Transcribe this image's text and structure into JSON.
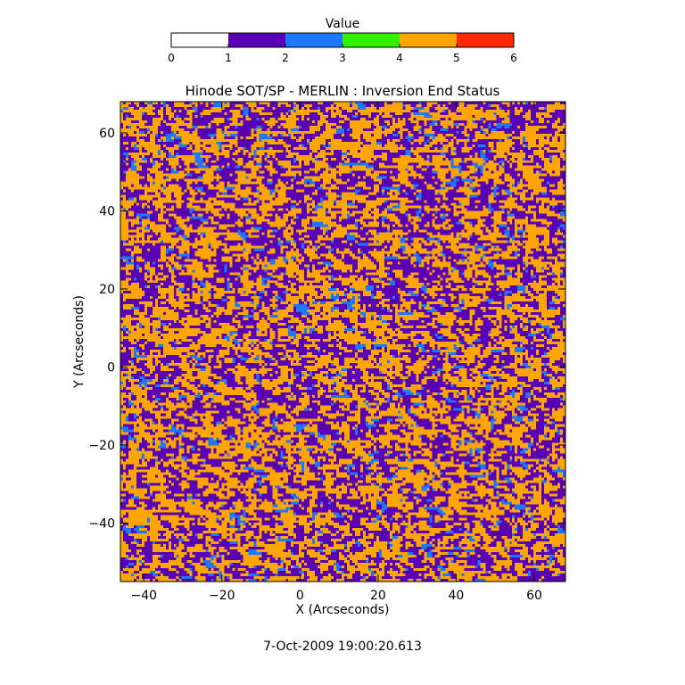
{
  "chart_data": {
    "type": "heatmap",
    "title": "Hinode SOT/SP - MERLIN : Inversion End Status",
    "xlabel": "X (Arcseconds)",
    "ylabel": "Y (Arcseconds)",
    "xlim": [
      -46,
      68
    ],
    "ylim": [
      -55,
      68
    ],
    "xticks": [
      -40,
      -20,
      0,
      20,
      40,
      60
    ],
    "xtick_labels": [
      "−40",
      "−20",
      "0",
      "20",
      "40",
      "60"
    ],
    "yticks": [
      -40,
      -20,
      0,
      20,
      40,
      60
    ],
    "ytick_labels": [
      "−40",
      "−20",
      "0",
      "20",
      "40",
      "60"
    ],
    "grid": false,
    "colorbar": {
      "label": "Value",
      "range": [
        0,
        6
      ],
      "tick_labels": [
        "0",
        "1",
        "2",
        "3",
        "4",
        "5",
        "6"
      ],
      "bins": [
        {
          "from": 0,
          "to": 1,
          "color": "#ffffff"
        },
        {
          "from": 1,
          "to": 2,
          "color": "#5a00b4"
        },
        {
          "from": 2,
          "to": 3,
          "color": "#1e78ff"
        },
        {
          "from": 3,
          "to": 4,
          "color": "#32f000"
        },
        {
          "from": 4,
          "to": 5,
          "color": "#ffa500"
        },
        {
          "from": 5,
          "to": 6,
          "color": "#ff2800"
        }
      ]
    },
    "value_fractions": [
      {
        "value_range": [
          1,
          2
        ],
        "fraction": 0.44
      },
      {
        "value_range": [
          2,
          3
        ],
        "fraction": 0.06
      },
      {
        "value_range": [
          4,
          5
        ],
        "fraction": 0.5
      }
    ]
  },
  "footer": {
    "timestamp": "7-Oct-2009 19:00:20.613"
  }
}
